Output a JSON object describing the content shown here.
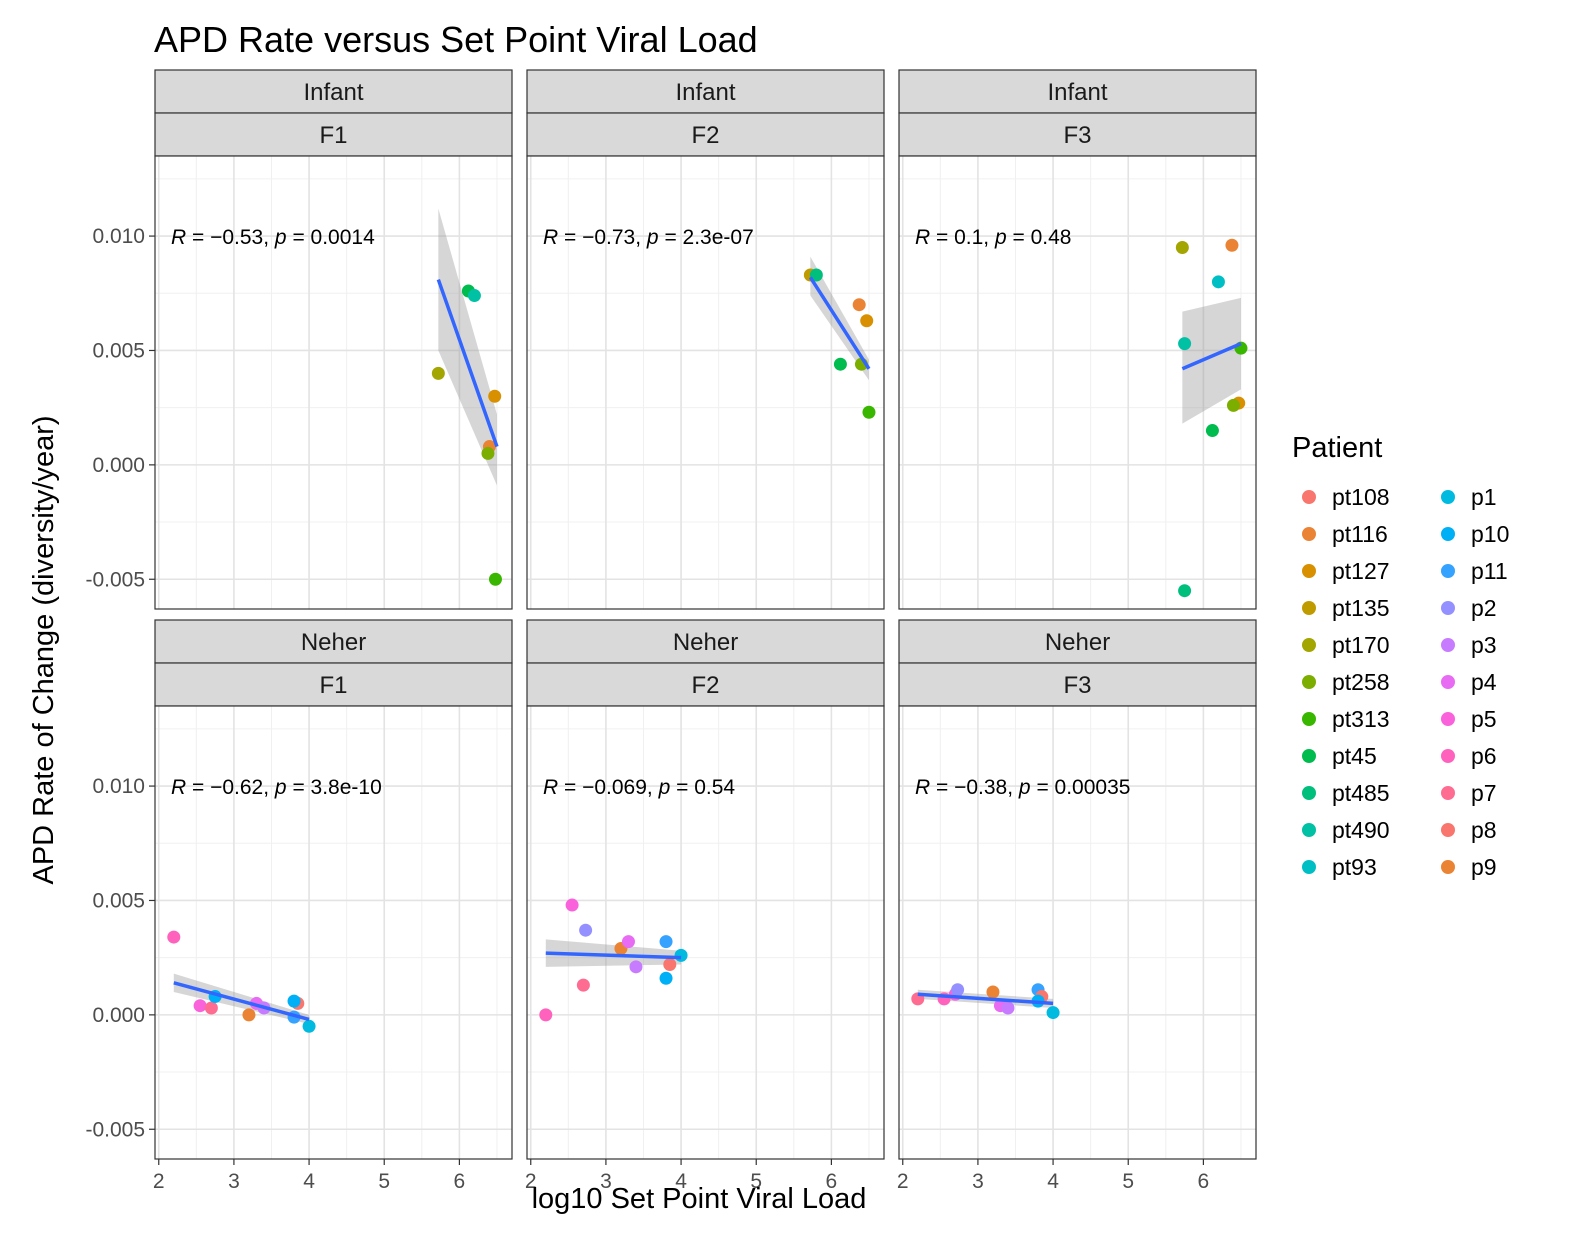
{
  "chart_data": {
    "type": "scatter",
    "title": "APD Rate versus Set Point Viral Load",
    "xlabel": "log10 Set Point Viral Load",
    "ylabel": "APD Rate of Change (diversity/year)",
    "xlim": [
      1.95,
      6.7
    ],
    "ylim": [
      -0.0063,
      0.0135
    ],
    "x_ticks": [
      "2",
      "3",
      "4",
      "5",
      "6"
    ],
    "y_ticks": [
      "-0.005",
      "0.000",
      "0.005",
      "0.010"
    ],
    "grid": true,
    "smoothing": "linear fit with confidence band",
    "legend": {
      "title": "Patient",
      "position": "right",
      "entries": [
        {
          "name": "pt108",
          "color": "#F8766D"
        },
        {
          "name": "pt116",
          "color": "#EB8335"
        },
        {
          "name": "pt127",
          "color": "#D89000"
        },
        {
          "name": "pt135",
          "color": "#C09B00"
        },
        {
          "name": "pt170",
          "color": "#A3A500"
        },
        {
          "name": "pt258",
          "color": "#7CAE00"
        },
        {
          "name": "pt313",
          "color": "#39B600"
        },
        {
          "name": "pt45",
          "color": "#00BB4E"
        },
        {
          "name": "pt485",
          "color": "#00BF7D"
        },
        {
          "name": "pt490",
          "color": "#00C1A3"
        },
        {
          "name": "pt93",
          "color": "#00BFC4"
        },
        {
          "name": "p1",
          "color": "#00BAE0"
        },
        {
          "name": "p10",
          "color": "#00B0F6"
        },
        {
          "name": "p11",
          "color": "#35A2FF"
        },
        {
          "name": "p2",
          "color": "#9590FF"
        },
        {
          "name": "p3",
          "color": "#C77CFF"
        },
        {
          "name": "p4",
          "color": "#E76BF3"
        },
        {
          "name": "p5",
          "color": "#FA62DB"
        },
        {
          "name": "p6",
          "color": "#FF62BC"
        },
        {
          "name": "p7",
          "color": "#FF6C91"
        },
        {
          "name": "p8",
          "color": "#F8766D"
        },
        {
          "name": "p9",
          "color": "#EB8335"
        }
      ]
    },
    "panels": [
      {
        "group": "Infant",
        "fragment": "F1",
        "annotation": {
          "r": "R = −0.53,",
          "p_label": "p",
          "p": " = 0.0014"
        },
        "fit": {
          "x": [
            5.72,
            6.5
          ],
          "y": [
            0.0081,
            0.0008
          ],
          "band_upper": [
            0.0112,
            0.0022
          ],
          "band_lower": [
            0.005,
            -0.0009
          ]
        },
        "points": [
          {
            "patient": "pt170",
            "x": 5.72,
            "y": 0.004
          },
          {
            "patient": "pt45",
            "x": 6.12,
            "y": 0.0076
          },
          {
            "patient": "pt490",
            "x": 6.2,
            "y": 0.0074
          },
          {
            "patient": "pt127",
            "x": 6.47,
            "y": 0.003
          },
          {
            "patient": "pt116",
            "x": 6.4,
            "y": 0.0008
          },
          {
            "patient": "pt258",
            "x": 6.38,
            "y": 0.0005
          },
          {
            "patient": "pt313",
            "x": 6.48,
            "y": -0.005
          }
        ]
      },
      {
        "group": "Infant",
        "fragment": "F2",
        "annotation": {
          "r": "R = −0.73,",
          "p_label": "p",
          "p": " = 2.3e-07"
        },
        "fit": {
          "x": [
            5.72,
            6.5
          ],
          "y": [
            0.0082,
            0.0042
          ],
          "band_upper": [
            0.0091,
            0.0046
          ],
          "band_lower": [
            0.0074,
            0.0037
          ]
        },
        "points": [
          {
            "patient": "pt135",
            "x": 5.72,
            "y": 0.0083
          },
          {
            "patient": "pt485",
            "x": 5.8,
            "y": 0.0083
          },
          {
            "patient": "pt116",
            "x": 6.37,
            "y": 0.007
          },
          {
            "patient": "pt127",
            "x": 6.47,
            "y": 0.0063
          },
          {
            "patient": "pt45",
            "x": 6.12,
            "y": 0.0044
          },
          {
            "patient": "pt258",
            "x": 6.4,
            "y": 0.0044
          },
          {
            "patient": "pt313",
            "x": 6.5,
            "y": 0.0023
          }
        ]
      },
      {
        "group": "Infant",
        "fragment": "F3",
        "annotation": {
          "r": "R = 0.1,",
          "p_label": "p",
          "p": " = 0.48"
        },
        "fit": {
          "x": [
            5.72,
            6.5
          ],
          "y": [
            0.0042,
            0.0053
          ],
          "band_upper": [
            0.0067,
            0.0073
          ],
          "band_lower": [
            0.0018,
            0.0033
          ]
        },
        "points": [
          {
            "patient": "pt170",
            "x": 5.72,
            "y": 0.0095
          },
          {
            "patient": "pt116",
            "x": 6.38,
            "y": 0.0096
          },
          {
            "patient": "pt93",
            "x": 6.2,
            "y": 0.008
          },
          {
            "patient": "pt490",
            "x": 5.75,
            "y": 0.0053
          },
          {
            "patient": "pt313",
            "x": 6.5,
            "y": 0.0051
          },
          {
            "patient": "pt127",
            "x": 6.47,
            "y": 0.0027
          },
          {
            "patient": "pt258",
            "x": 6.4,
            "y": 0.0026
          },
          {
            "patient": "pt45",
            "x": 6.12,
            "y": 0.0015
          },
          {
            "patient": "pt485",
            "x": 5.75,
            "y": -0.0055
          }
        ]
      },
      {
        "group": "Neher",
        "fragment": "F1",
        "annotation": {
          "r": "R = −0.62,",
          "p_label": "p",
          "p": " = 3.8e-10"
        },
        "fit": {
          "x": [
            2.2,
            4.0
          ],
          "y": [
            0.0014,
            -0.0002
          ],
          "band_upper": [
            0.0018,
            0.0
          ],
          "band_lower": [
            0.001,
            -0.0004
          ]
        },
        "points": [
          {
            "patient": "p6",
            "x": 2.2,
            "y": 0.0034
          },
          {
            "patient": "p5",
            "x": 2.55,
            "y": 0.0004
          },
          {
            "patient": "p7",
            "x": 2.7,
            "y": 0.0003
          },
          {
            "patient": "p10",
            "x": 2.75,
            "y": 0.0008
          },
          {
            "patient": "p9",
            "x": 3.2,
            "y": 0.0
          },
          {
            "patient": "p4",
            "x": 3.3,
            "y": 0.0005
          },
          {
            "patient": "p3",
            "x": 3.4,
            "y": 0.0003
          },
          {
            "patient": "p8",
            "x": 3.85,
            "y": 0.0005
          },
          {
            "patient": "p11",
            "x": 3.8,
            "y": -0.0001
          },
          {
            "patient": "p10",
            "x": 3.8,
            "y": 0.0006
          },
          {
            "patient": "p1",
            "x": 4.0,
            "y": -0.0005
          }
        ]
      },
      {
        "group": "Neher",
        "fragment": "F2",
        "annotation": {
          "r": "R = −0.069,",
          "p_label": "p",
          "p": " = 0.54"
        },
        "fit": {
          "x": [
            2.2,
            4.0
          ],
          "y": [
            0.0027,
            0.0025
          ],
          "band_upper": [
            0.0033,
            0.0028
          ],
          "band_lower": [
            0.0021,
            0.0022
          ]
        },
        "points": [
          {
            "patient": "p6",
            "x": 2.2,
            "y": 0.0
          },
          {
            "patient": "p5",
            "x": 2.55,
            "y": 0.0048
          },
          {
            "patient": "p7",
            "x": 2.7,
            "y": 0.0013
          },
          {
            "patient": "p2",
            "x": 2.73,
            "y": 0.0037
          },
          {
            "patient": "p9",
            "x": 3.2,
            "y": 0.0029
          },
          {
            "patient": "p4",
            "x": 3.3,
            "y": 0.0032
          },
          {
            "patient": "p3",
            "x": 3.4,
            "y": 0.0021
          },
          {
            "patient": "p11",
            "x": 3.8,
            "y": 0.0032
          },
          {
            "patient": "p10",
            "x": 3.8,
            "y": 0.0016
          },
          {
            "patient": "p8",
            "x": 3.85,
            "y": 0.0022
          },
          {
            "patient": "p1",
            "x": 4.0,
            "y": 0.0026
          }
        ]
      },
      {
        "group": "Neher",
        "fragment": "F3",
        "annotation": {
          "r": "R = −0.38,",
          "p_label": "p",
          "p": " = 0.00035"
        },
        "fit": {
          "x": [
            2.2,
            4.0
          ],
          "y": [
            0.0009,
            0.0005
          ],
          "band_upper": [
            0.0011,
            0.0007
          ],
          "band_lower": [
            0.0007,
            0.0003
          ]
        },
        "points": [
          {
            "patient": "p7",
            "x": 2.2,
            "y": 0.0007
          },
          {
            "patient": "p6",
            "x": 2.55,
            "y": 0.0007
          },
          {
            "patient": "p5",
            "x": 2.7,
            "y": 0.0009
          },
          {
            "patient": "p2",
            "x": 2.73,
            "y": 0.0011
          },
          {
            "patient": "p9",
            "x": 3.2,
            "y": 0.001
          },
          {
            "patient": "p4",
            "x": 3.3,
            "y": 0.0004
          },
          {
            "patient": "p3",
            "x": 3.4,
            "y": 0.0003
          },
          {
            "patient": "p11",
            "x": 3.8,
            "y": 0.0011
          },
          {
            "patient": "p8",
            "x": 3.85,
            "y": 0.0008
          },
          {
            "patient": "p10",
            "x": 3.8,
            "y": 0.0006
          },
          {
            "patient": "p1",
            "x": 4.0,
            "y": 0.0001
          }
        ]
      }
    ]
  }
}
